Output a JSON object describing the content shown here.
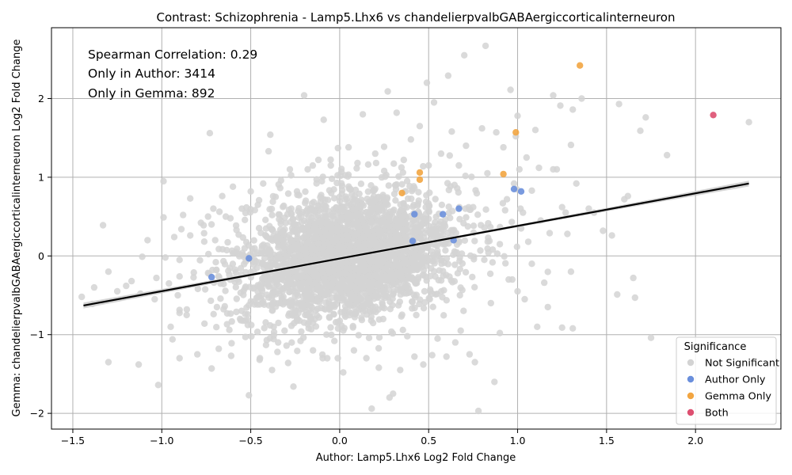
{
  "chart_data": {
    "type": "scatter",
    "title": "Contrast: Schizophrenia - Lamp5.Lhx6 vs chandelierpvalbGABAergiccorticalinterneuron",
    "xlabel": "Author: Lamp5.Lhx6 Log2 Fold Change",
    "ylabel": "Gemma: chandelierpvalbGABAergiccorticalinterneuron Log2 Fold Change",
    "xlim": [
      -1.62,
      2.48
    ],
    "ylim": [
      -2.2,
      2.9
    ],
    "xticks": [
      -1.5,
      -1.0,
      -0.5,
      0.0,
      0.5,
      1.0,
      1.5,
      2.0
    ],
    "xtick_labels": [
      "−1.5",
      "−1.0",
      "−0.5",
      "0.0",
      "0.5",
      "1.0",
      "1.5",
      "2.0"
    ],
    "yticks": [
      -2,
      -1,
      0,
      1,
      2
    ],
    "ytick_labels": [
      "−2",
      "−1",
      "0",
      "1",
      "2"
    ],
    "grid": true,
    "annotations": [
      "Spearman Correlation: 0.29",
      "Only in Author: 3414",
      "Only in Gemma: 892"
    ],
    "legend": {
      "title": "Significance",
      "position": "bottom-right",
      "entries": [
        {
          "label": "Not Significant",
          "color": "#d3d3d3"
        },
        {
          "label": "Author Only",
          "color": "#6a8fdc"
        },
        {
          "label": "Gemma Only",
          "color": "#f2a541"
        },
        {
          "label": "Both",
          "color": "#dd4f70"
        }
      ]
    },
    "regression": {
      "x": [
        -1.44,
        2.3
      ],
      "y": [
        -0.63,
        0.92
      ],
      "color": "#000000",
      "band_color": "#cccccc"
    },
    "series": [
      {
        "name": "Not Significant",
        "color": "#d3d3d3",
        "points": [
          [
            -1.45,
            -0.52
          ],
          [
            -1.39,
            -0.61
          ],
          [
            -1.38,
            -0.4
          ],
          [
            -1.33,
            0.39
          ],
          [
            -1.3,
            -0.2
          ],
          [
            -1.3,
            -1.35
          ],
          [
            -1.25,
            -0.45
          ],
          [
            -1.2,
            -0.38
          ],
          [
            -1.17,
            -0.32
          ],
          [
            -1.13,
            -1.38
          ],
          [
            -1.12,
            -0.48
          ],
          [
            -1.11,
            -0.01
          ],
          [
            -1.08,
            0.2
          ],
          [
            -1.04,
            -0.55
          ],
          [
            -1.03,
            -0.28
          ],
          [
            -1.02,
            -1.64
          ],
          [
            -0.99,
            0.49
          ],
          [
            -0.99,
            0.95
          ],
          [
            -0.98,
            -0.02
          ],
          [
            -0.96,
            -0.35
          ],
          [
            -0.95,
            -0.9
          ],
          [
            -0.94,
            -1.06
          ],
          [
            -0.93,
            0.24
          ],
          [
            -0.91,
            -0.5
          ],
          [
            -0.89,
            0.34
          ],
          [
            -0.88,
            0.52
          ],
          [
            -0.86,
            -0.75
          ],
          [
            -0.84,
            0.73
          ],
          [
            -0.84,
            0.26
          ],
          [
            -0.82,
            -0.21
          ],
          [
            -0.8,
            -1.25
          ],
          [
            -0.78,
            0.42
          ],
          [
            -0.76,
            -0.86
          ],
          [
            -0.74,
            0.5
          ],
          [
            -0.73,
            1.56
          ],
          [
            -0.72,
            -1.43
          ],
          [
            -0.71,
            0.6
          ],
          [
            -0.7,
            0.2
          ],
          [
            -0.69,
            -0.65
          ],
          [
            -0.68,
            -1.18
          ],
          [
            -0.66,
            0.76
          ],
          [
            -0.64,
            0.5
          ],
          [
            -0.62,
            -0.94
          ],
          [
            -0.61,
            -1.27
          ],
          [
            -0.6,
            0.88
          ],
          [
            -0.58,
            0.33
          ],
          [
            -0.56,
            -0.8
          ],
          [
            -0.55,
            0.6
          ],
          [
            -0.53,
            -1.03
          ],
          [
            -0.51,
            -1.77
          ],
          [
            -0.5,
            0.82
          ],
          [
            -0.48,
            -0.58
          ],
          [
            -0.46,
            0.65
          ],
          [
            -0.45,
            -1.32
          ],
          [
            -0.43,
            0.92
          ],
          [
            -0.41,
            -1.07
          ],
          [
            -0.4,
            1.33
          ],
          [
            -0.39,
            1.54
          ],
          [
            -0.38,
            -1.45
          ],
          [
            -0.36,
            0.75
          ],
          [
            -0.35,
            -1.22
          ],
          [
            -0.33,
            0.96
          ],
          [
            -0.31,
            -0.95
          ],
          [
            -0.29,
            -1.36
          ],
          [
            -0.28,
            1.1
          ],
          [
            -0.26,
            -1.66
          ],
          [
            -0.24,
            0.82
          ],
          [
            -0.22,
            -1.08
          ],
          [
            -0.2,
            2.04
          ],
          [
            -0.18,
            1.1
          ],
          [
            -0.15,
            -1.2
          ],
          [
            -0.12,
            1.22
          ],
          [
            -0.1,
            0.95
          ],
          [
            -0.09,
            1.73
          ],
          [
            -0.07,
            -1.3
          ],
          [
            -0.05,
            1.15
          ],
          [
            -0.03,
            -1.08
          ],
          [
            -0.01,
            1.37
          ],
          [
            0.02,
            -1.48
          ],
          [
            0.05,
            1.38
          ],
          [
            0.08,
            -1.2
          ],
          [
            0.1,
            1.18
          ],
          [
            0.13,
            1.8
          ],
          [
            0.15,
            -1.3
          ],
          [
            0.18,
            -1.94
          ],
          [
            0.2,
            1.3
          ],
          [
            0.22,
            -1.42
          ],
          [
            0.25,
            1.08
          ],
          [
            0.27,
            2.09
          ],
          [
            0.28,
            -1.8
          ],
          [
            0.3,
            -1.75
          ],
          [
            0.32,
            1.82
          ],
          [
            0.34,
            -1.45
          ],
          [
            0.36,
            1.22
          ],
          [
            0.38,
            -1.02
          ],
          [
            0.4,
            1.48
          ],
          [
            0.42,
            -1.28
          ],
          [
            0.45,
            1.65
          ],
          [
            0.47,
            -1.38
          ],
          [
            0.49,
            2.2
          ],
          [
            0.5,
            1.15
          ],
          [
            0.52,
            -1.26
          ],
          [
            0.53,
            1.95
          ],
          [
            0.55,
            -1.05
          ],
          [
            0.57,
            1.3
          ],
          [
            0.6,
            -1.28
          ],
          [
            0.61,
            2.29
          ],
          [
            0.63,
            1.58
          ],
          [
            0.65,
            -1.1
          ],
          [
            0.67,
            1.15
          ],
          [
            0.68,
            -0.95
          ],
          [
            0.7,
            2.55
          ],
          [
            0.71,
            1.4
          ],
          [
            0.73,
            -1.25
          ],
          [
            0.75,
            0.62
          ],
          [
            0.76,
            -1.35
          ],
          [
            0.78,
            -1.97
          ],
          [
            0.8,
            1.62
          ],
          [
            0.82,
            2.67
          ],
          [
            0.83,
            1.05
          ],
          [
            0.85,
            -0.6
          ],
          [
            0.87,
            -1.6
          ],
          [
            0.88,
            1.57
          ],
          [
            0.9,
            -0.98
          ],
          [
            0.92,
            1.38
          ],
          [
            0.94,
            0.72
          ],
          [
            0.96,
            2.11
          ],
          [
            0.97,
            -0.3
          ],
          [
            0.99,
            1.52
          ],
          [
            1.0,
            1.78
          ],
          [
            1.01,
            1.1
          ],
          [
            1.03,
            0.55
          ],
          [
            1.04,
            -0.55
          ],
          [
            1.06,
            0.18
          ],
          [
            1.08,
            0.83
          ],
          [
            1.1,
            1.6
          ],
          [
            1.11,
            -0.9
          ],
          [
            1.13,
            0.45
          ],
          [
            1.15,
            -0.34
          ],
          [
            1.17,
            -0.65
          ],
          [
            1.18,
            0.29
          ],
          [
            1.2,
            2.04
          ],
          [
            1.22,
            1.1
          ],
          [
            1.24,
            1.91
          ],
          [
            1.25,
            -0.91
          ],
          [
            1.27,
            0.55
          ],
          [
            1.28,
            0.28
          ],
          [
            1.3,
            1.41
          ],
          [
            1.31,
            1.86
          ],
          [
            1.31,
            -0.92
          ],
          [
            1.33,
            0.92
          ],
          [
            1.36,
            2.0
          ],
          [
            1.4,
            0.6
          ],
          [
            1.43,
            0.55
          ],
          [
            1.48,
            0.32
          ],
          [
            1.53,
            0.26
          ],
          [
            1.56,
            -0.49
          ],
          [
            1.57,
            1.93
          ],
          [
            1.6,
            0.72
          ],
          [
            1.62,
            0.76
          ],
          [
            1.65,
            -0.28
          ],
          [
            1.66,
            -0.53
          ],
          [
            1.69,
            1.59
          ],
          [
            1.72,
            1.76
          ],
          [
            1.75,
            -1.04
          ],
          [
            1.84,
            1.28
          ],
          [
            2.3,
            1.7
          ],
          [
            1.3,
            -0.2
          ],
          [
            1.0,
            -0.45
          ],
          [
            0.95,
            -0.3
          ],
          [
            1.05,
            1.25
          ],
          [
            1.12,
            1.12
          ],
          [
            1.25,
            0.62
          ],
          [
            1.2,
            1.1
          ],
          [
            0.93,
            0.58
          ],
          [
            0.98,
            0.92
          ],
          [
            1.08,
            -0.1
          ],
          [
            1.02,
            0.35
          ],
          [
            0.9,
            0.15
          ],
          [
            0.86,
            0.08
          ]
        ],
        "cloud": {
          "count": 2900,
          "x_center": 0.05,
          "x_sd": 0.3,
          "y_sd": 0.4,
          "slope": 0.3,
          "x_range": [
            -0.9,
            1.2
          ],
          "y_range": [
            -1.3,
            1.45
          ]
        }
      },
      {
        "name": "Author Only",
        "color": "#6a8fdc",
        "points": [
          [
            -0.72,
            -0.27
          ],
          [
            -0.51,
            -0.03
          ],
          [
            0.41,
            0.19
          ],
          [
            0.42,
            0.53
          ],
          [
            0.58,
            0.53
          ],
          [
            0.64,
            0.2
          ],
          [
            0.67,
            0.6
          ],
          [
            0.98,
            0.85
          ],
          [
            1.02,
            0.82
          ]
        ]
      },
      {
        "name": "Gemma Only",
        "color": "#f2a541",
        "points": [
          [
            0.35,
            0.8
          ],
          [
            0.45,
            0.97
          ],
          [
            0.45,
            1.06
          ],
          [
            0.92,
            1.04
          ],
          [
            0.99,
            1.57
          ],
          [
            1.35,
            2.42
          ]
        ]
      },
      {
        "name": "Both",
        "color": "#dd4f70",
        "points": [
          [
            2.1,
            1.79
          ]
        ]
      }
    ]
  }
}
